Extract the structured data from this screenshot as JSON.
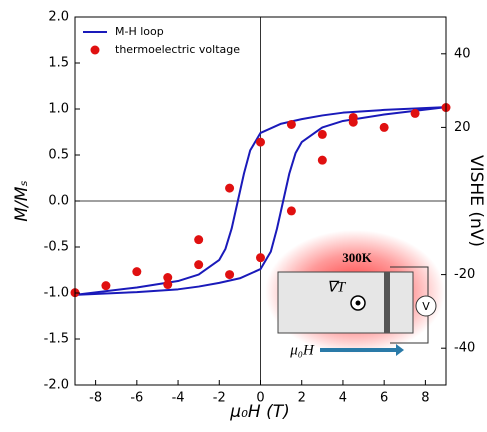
{
  "chart_data": {
    "type": "line+scatter",
    "xlabel": "μ₀H (T)",
    "ylabel": "M/Mₛ",
    "y2label": "VISHE (nV)",
    "xlim": [
      -9,
      9
    ],
    "xticks": [
      -8,
      -6,
      -4,
      -2,
      0,
      2,
      4,
      6,
      8
    ],
    "ylim": [
      -2,
      2
    ],
    "yticks": [
      {
        "value": -2,
        "label": "-2.0"
      },
      -1.5,
      {
        "value": -1,
        "label": "-1.0"
      },
      -0.5,
      {
        "value": 0,
        "label": "0.0"
      },
      0.5,
      {
        "value": 1,
        "label": "1.0"
      },
      1.5,
      {
        "value": 2,
        "label": "2.0"
      }
    ],
    "y2lim": [
      -50,
      50
    ],
    "y2ticks": [
      -40,
      -20,
      20,
      40
    ],
    "zero_lines": true,
    "legend": "upper left",
    "series": [
      {
        "name": "M-H loop",
        "type": "line",
        "color": "#1a1aba",
        "x": [
          9,
          6,
          4,
          3,
          2,
          1,
          0,
          -0.5,
          -0.8,
          -1.1,
          -1.4,
          -1.7,
          -2,
          -3,
          -4,
          -6,
          -9,
          -9,
          -6,
          -4,
          -3,
          -2,
          -1,
          0,
          0.5,
          0.8,
          1.1,
          1.4,
          1.7,
          2,
          3,
          4,
          6,
          9
        ],
        "values": [
          1.02,
          0.99,
          0.96,
          0.93,
          0.89,
          0.84,
          0.74,
          0.55,
          0.3,
          0,
          -0.3,
          -0.52,
          -0.64,
          -0.8,
          -0.87,
          -0.94,
          -1.02,
          -1.02,
          -0.99,
          -0.96,
          -0.93,
          -0.89,
          -0.84,
          -0.74,
          -0.55,
          -0.3,
          0,
          0.3,
          0.52,
          0.64,
          0.8,
          0.87,
          0.94,
          1.02
        ]
      },
      {
        "name": "thermoelectric voltage",
        "type": "scatter",
        "color": "#e01010",
        "axis": "y2",
        "x": [
          -9,
          -7.5,
          -6,
          -4.5,
          -4.5,
          -3,
          -3,
          -1.5,
          -1.5,
          0,
          0,
          1.5,
          1.5,
          3,
          3,
          4.5,
          4.5,
          6,
          7.5,
          9
        ],
        "values": [
          -24.9,
          -23,
          -19.2,
          -20.8,
          -22.7,
          -10.5,
          -17.3,
          3.5,
          -20,
          16,
          -15.4,
          20.8,
          -2.7,
          18.1,
          11.1,
          22.7,
          21.4,
          20,
          23.8,
          25.4
        ]
      }
    ],
    "inset": {
      "temperature": "300K",
      "gradient": "∇T",
      "field": "μ₀H",
      "meter": "V"
    }
  }
}
